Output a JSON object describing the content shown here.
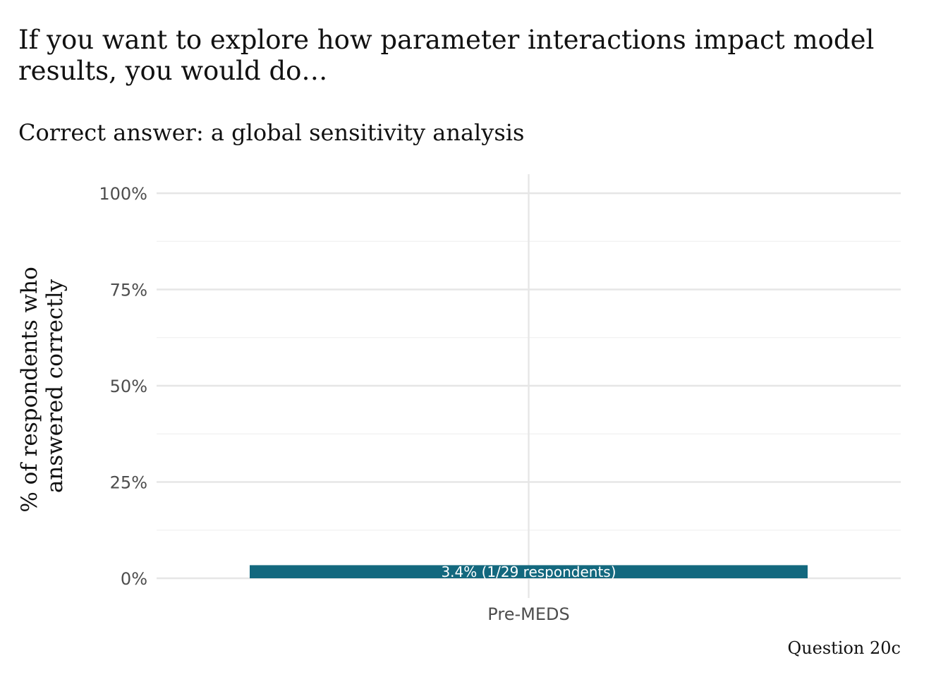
{
  "chart_data": {
    "type": "bar",
    "title": "If you want to explore how parameter interactions impact model results, you would do…",
    "title_lines": [
      "If you want to explore how parameter interactions impact model",
      "results, you would do…"
    ],
    "subtitle": "Correct answer: a global sensitivity analysis",
    "ylabel": "% of respondents who answered correctly",
    "ylabel_lines": [
      "% of respondents who",
      "answered correctly"
    ],
    "xlabel": "",
    "caption": "Question 20c",
    "categories": [
      "Pre-MEDS"
    ],
    "values": [
      3.4
    ],
    "data_labels": [
      "3.4% (1/29 respondents)"
    ],
    "ylim": [
      0,
      100
    ],
    "yticks": [
      0,
      25,
      50,
      75,
      100
    ],
    "ytick_labels": [
      "0%",
      "25%",
      "50%",
      "75%",
      "100%"
    ],
    "grid": true,
    "legend": "none",
    "colors": {
      "bar": "#13687e",
      "grid_major": "#e6e6e6",
      "grid_minor": "#f0f0f0"
    }
  }
}
